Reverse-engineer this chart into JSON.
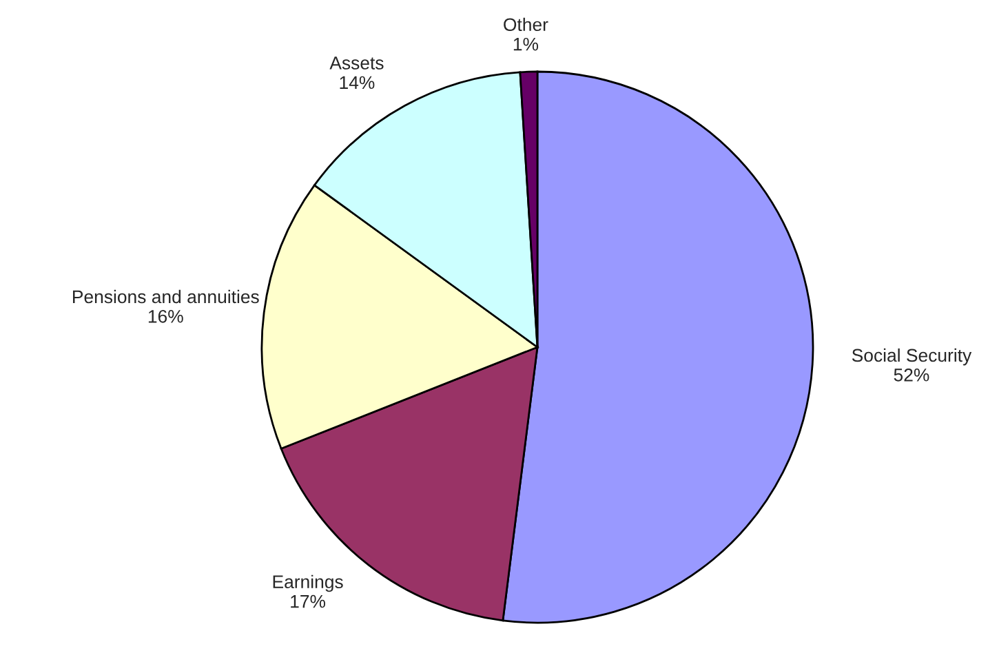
{
  "chart_data": {
    "type": "pie",
    "categories": [
      "Social Security",
      "Earnings",
      "Pensions and annuities",
      "Assets",
      "Other"
    ],
    "values": [
      52,
      17,
      16,
      14,
      1
    ],
    "value_labels": [
      "52%",
      "17%",
      "16%",
      "14%",
      "1%"
    ],
    "colors": [
      "#9999ff",
      "#993366",
      "#ffffcc",
      "#ccffff",
      "#660066"
    ],
    "legend": false
  }
}
